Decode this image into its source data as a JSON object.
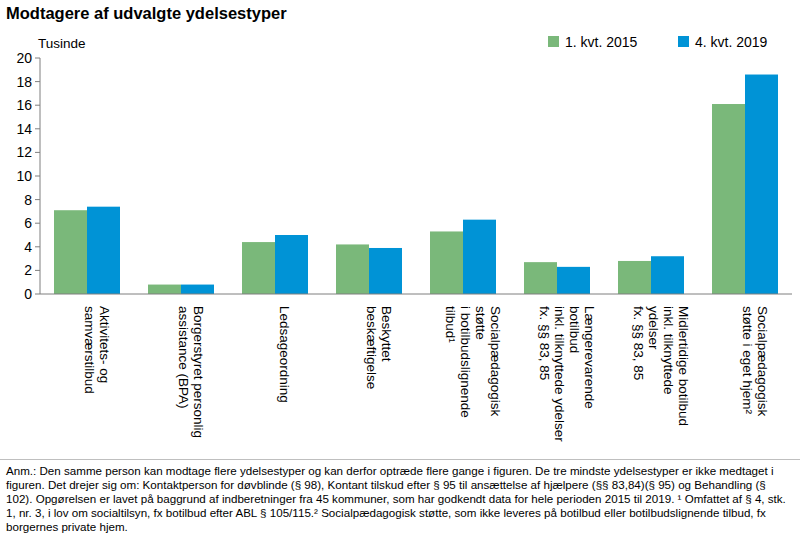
{
  "chart_data": {
    "type": "bar",
    "title": "Modtagere af udvalgte ydelsestyper",
    "y_label": "Tusinde",
    "categories": [
      "Aktivitets- og\nsamværstilbud",
      "Borgerstyret personlig\nassistance (BPA)",
      "Ledsageordning",
      "Beskyttet\nbeskæftigelse",
      "Socialpædagogisk\nstøtte\ni botilbudslignende\ntilbud¹",
      "Længerevarende\nbotilbud\ninkl. tilknyttede ydelser\nfx. §§ 83, 85",
      "Midlertidige botilbud\ninkl. tilknyttede\nydelser\nfx. §§ 83, 85",
      "Socialpædagogisk\nstøtte i eget hjem²"
    ],
    "series": [
      {
        "name": "1. kvt. 2015",
        "color": "#7ab87a",
        "values": [
          7.1,
          0.8,
          4.4,
          4.2,
          5.3,
          2.7,
          2.8,
          16.1
        ]
      },
      {
        "name": "4. kvt. 2019",
        "color": "#0093d6",
        "values": [
          7.4,
          0.8,
          5.0,
          3.9,
          6.3,
          2.3,
          3.2,
          18.6
        ]
      }
    ],
    "ylim": [
      0,
      20
    ],
    "yticks": [
      0,
      2,
      4,
      6,
      8,
      10,
      12,
      14,
      16,
      18,
      20
    ],
    "grid": false,
    "legend": "top-right",
    "note": "Anm.: Den samme person kan modtage flere ydelsestyper og kan derfor optræde flere gange i figuren. De tre mindste ydelsestyper er ikke medtaget i figuren. Det drejer sig om: Kontaktperson for døvblinde (§ 98), Kontant tilskud efter § 95 til ansættelse af hjælpere (§§ 83,84)(§ 95) og Behandling (§ 102). Opgørelsen er lavet på baggrund af indberetninger fra 45 kommuner, som har godkendt data for hele perioden 2015 til 2019. ¹ Omfattet af § 4, stk. 1, nr. 3, i lov om socialtilsyn, fx botilbud efter ABL § 105/115.² Socialpædagogisk støtte, som ikke leveres på botilbud eller botilbudslignende tilbud, fx borgernes private hjem."
  }
}
